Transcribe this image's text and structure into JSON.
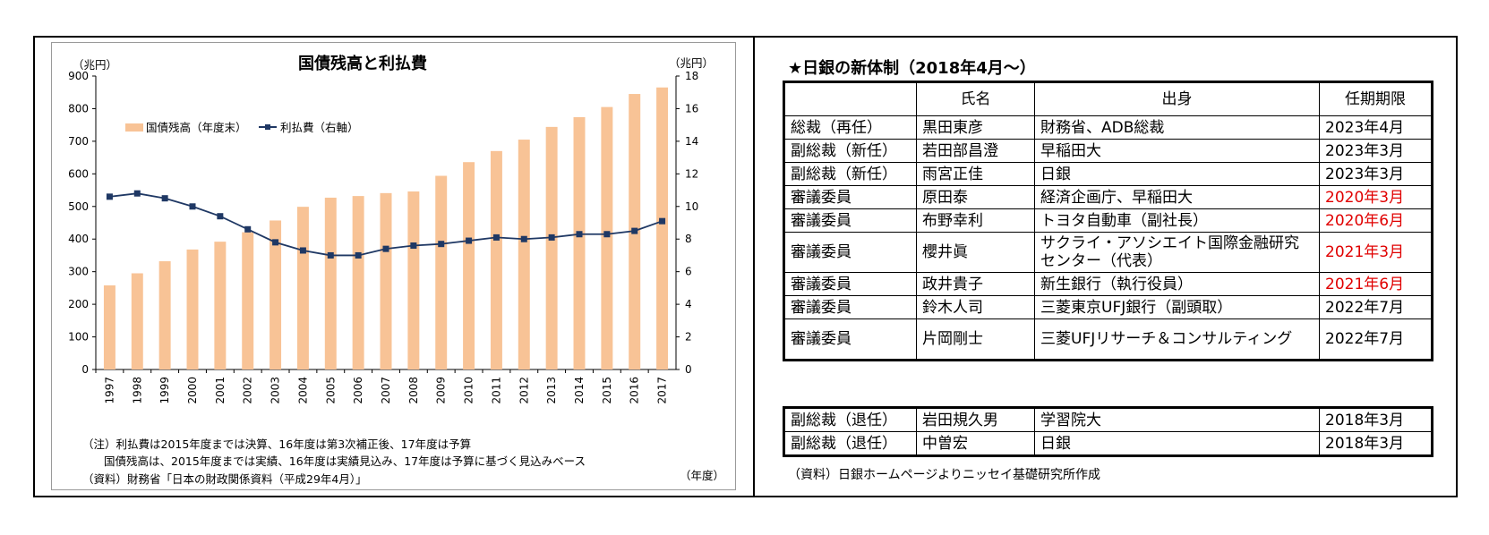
{
  "chart_data": {
    "type": "bar+line",
    "title": "国債残高と利払費",
    "y_left_unit": "（兆円）",
    "y_right_unit": "（兆円）",
    "x_unit": "（年度）",
    "ylim_left": [
      0,
      900
    ],
    "ylim_right": [
      0,
      18
    ],
    "yticks_left": [
      "0",
      "100",
      "200",
      "300",
      "400",
      "500",
      "600",
      "700",
      "800",
      "900"
    ],
    "yticks_right": [
      "0",
      "2",
      "4",
      "6",
      "8",
      "10",
      "12",
      "14",
      "16",
      "18"
    ],
    "categories": [
      "1997",
      "1998",
      "1999",
      "2000",
      "2001",
      "2002",
      "2003",
      "2004",
      "2005",
      "2006",
      "2007",
      "2008",
      "2009",
      "2010",
      "2011",
      "2012",
      "2013",
      "2014",
      "2015",
      "2016",
      "2017"
    ],
    "series": [
      {
        "name": "国債残高（年度末）",
        "type": "bar",
        "axis": "left",
        "values": [
          258,
          295,
          332,
          368,
          392,
          421,
          457,
          499,
          527,
          532,
          541,
          546,
          594,
          636,
          670,
          705,
          744,
          774,
          805,
          845,
          865
        ]
      },
      {
        "name": "利払費（右軸）",
        "type": "line",
        "axis": "right",
        "values": [
          10.6,
          10.8,
          10.5,
          10.0,
          9.4,
          8.6,
          7.8,
          7.3,
          7.0,
          7.0,
          7.4,
          7.6,
          7.7,
          7.9,
          8.1,
          8.0,
          8.1,
          8.3,
          8.3,
          8.5,
          9.1
        ]
      }
    ],
    "colors": {
      "bar": "#f8c396",
      "line": "#1f3864"
    },
    "grid": false,
    "legend_placement": "top-left",
    "notes": [
      "（注）利払費は2015年度までは決算、16年度は第3次補正後、17年度は予算",
      "国債残高は、2015年度までは実績、16年度は実績見込み、17年度は予算に基づく見込みベース",
      "（資料）財務省「日本の財政関係資料（平成29年4月）」"
    ]
  },
  "board": {
    "title": "★日銀の新体制（2018年4月～）",
    "headers": [
      "",
      "氏名",
      "出身",
      "任期期限"
    ],
    "rows": [
      {
        "role": "総裁（再任）",
        "name": "黒田東彦",
        "origin": "財務省、ADB総裁",
        "term": "2023年4月",
        "highlight": false
      },
      {
        "role": "副総裁（新任）",
        "name": "若田部昌澄",
        "origin": "早稲田大",
        "term": "2023年3月",
        "highlight": false
      },
      {
        "role": "副総裁（新任）",
        "name": "雨宮正佳",
        "origin": "日銀",
        "term": "2023年3月",
        "highlight": false
      },
      {
        "role": "審議委員",
        "name": "原田泰",
        "origin": "経済企画庁、早稲田大",
        "term": "2020年3月",
        "highlight": true
      },
      {
        "role": "審議委員",
        "name": "布野幸利",
        "origin": "トヨタ自動車（副社長）",
        "term": "2020年6月",
        "highlight": true
      },
      {
        "role": "審議委員",
        "name": "櫻井眞",
        "origin": "サクライ・アソシエイト国際金融研究センター（代表）",
        "term": "2021年3月",
        "highlight": true,
        "tall": true
      },
      {
        "role": "審議委員",
        "name": "政井貴子",
        "origin": "新生銀行（執行役員）",
        "term": "2021年6月",
        "highlight": true
      },
      {
        "role": "審議委員",
        "name": "鈴木人司",
        "origin": "三菱東京UFJ銀行（副頭取）",
        "term": "2022年7月",
        "highlight": false
      },
      {
        "role": "審議委員",
        "name": "片岡剛士",
        "origin": "三菱UFJリサーチ＆コンサルティング",
        "term": "2022年7月",
        "highlight": false,
        "tall": true
      }
    ],
    "retired": [
      {
        "role": "副総裁（退任）",
        "name": "岩田規久男",
        "origin": "学習院大",
        "term": "2018年3月"
      },
      {
        "role": "副総裁（退任）",
        "name": "中曽宏",
        "origin": "日銀",
        "term": "2018年3月"
      }
    ],
    "colors": {
      "highlight": "#e00000"
    },
    "source": "（資料）日銀ホームページよりニッセイ基礎研究所作成"
  }
}
